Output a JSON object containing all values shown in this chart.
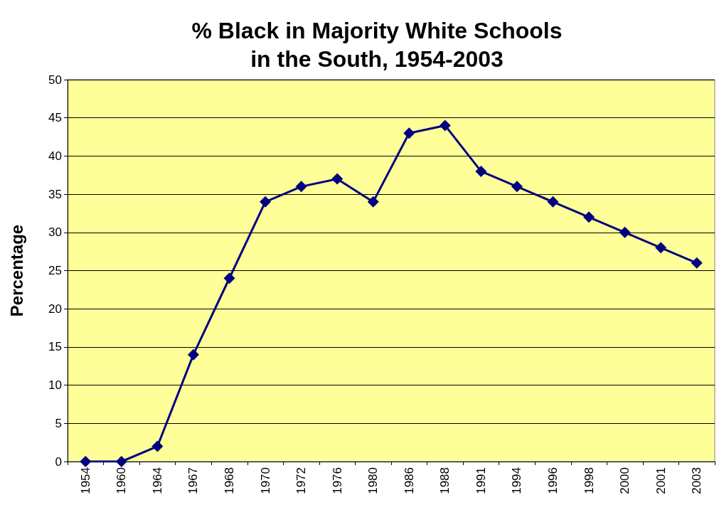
{
  "chart_data": {
    "type": "line",
    "title": "% Black in Majority White Schools\nin the South, 1954-2003",
    "ylabel": "Percentage",
    "categories": [
      "1954",
      "1960",
      "1964",
      "1967",
      "1968",
      "1970",
      "1972",
      "1976",
      "1980",
      "1986",
      "1988",
      "1991",
      "1994",
      "1996",
      "1998",
      "2000",
      "2001",
      "2003"
    ],
    "series": [
      {
        "color": "#000080",
        "values": [
          0,
          0,
          2,
          14,
          24,
          34,
          36,
          37,
          34,
          43,
          44,
          38,
          36,
          34,
          32,
          30,
          28,
          26
        ]
      }
    ],
    "ylim": [
      0,
      50
    ],
    "yticks": [
      0,
      5,
      10,
      15,
      20,
      25,
      30,
      35,
      40,
      45,
      50
    ],
    "grid": "y",
    "marker": "diamond",
    "line_style": "solid"
  }
}
